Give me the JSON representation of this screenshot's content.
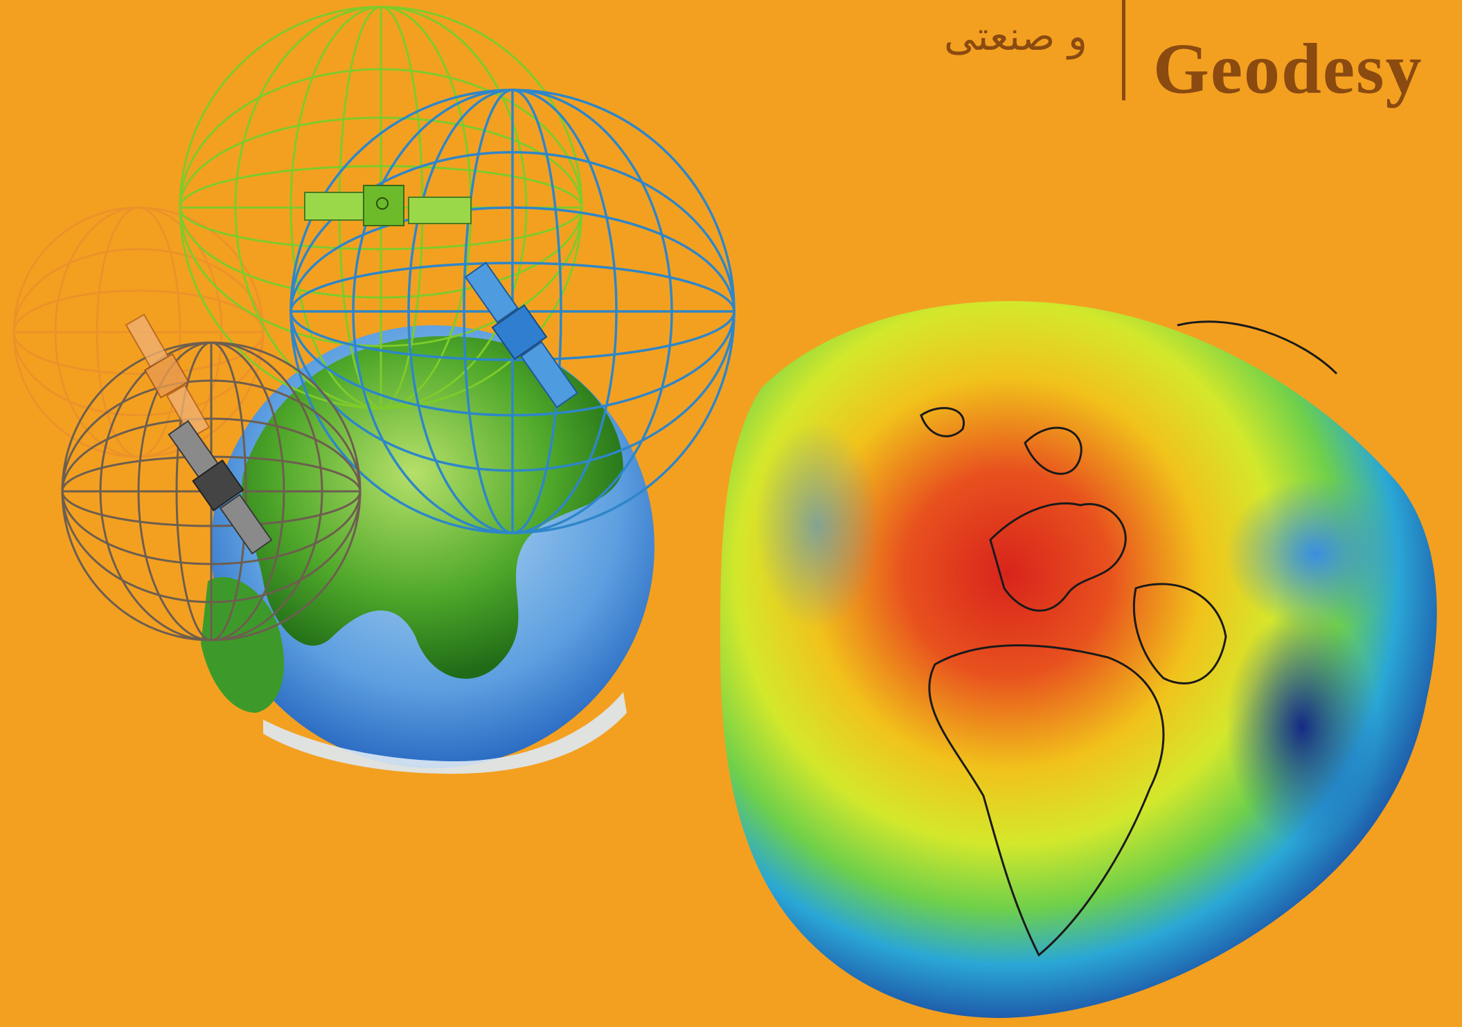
{
  "header": {
    "persian_text": "و صنعتی",
    "title": "Geodesy"
  },
  "colors": {
    "background": "#f3a021",
    "title_text": "#8a4a10"
  },
  "illustrations": {
    "left": "satellites-and-earth-illustration",
    "right": "geoid-earth-illustration"
  }
}
